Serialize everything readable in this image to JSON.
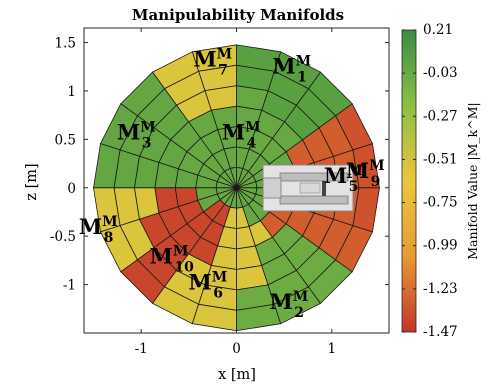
{
  "chart_data": {
    "type": "heatmap",
    "title": "Manipulability Manifolds",
    "xlabel": "x [m]",
    "ylabel": "z [m]",
    "xlim": [
      -1.6,
      1.6
    ],
    "ylim": [
      -1.5,
      1.65
    ],
    "xticks": [
      "-1",
      "0",
      "1"
    ],
    "yticks": [
      "1.5",
      "1",
      "0.5",
      "0",
      "-0.5",
      "-1"
    ],
    "colorbar": {
      "label": "Manifold Value |M_k^M|",
      "min": -1.47,
      "max": 0.21,
      "ticks": [
        "0.21",
        "-0.03",
        "-0.27",
        "-0.51",
        "-0.75",
        "-0.99",
        "-1.23",
        "-1.47"
      ],
      "colors": [
        "#3a8d3f",
        "#8cbf45",
        "#ecc63a",
        "#e89a34",
        "#c3352a"
      ]
    },
    "regions": [
      {
        "label": "M",
        "index": "1",
        "superscript": "M",
        "x": 0.58,
        "y": 1.18,
        "value": 0.05
      },
      {
        "label": "M",
        "index": "2",
        "superscript": "M",
        "x": 0.55,
        "y": -1.25,
        "value": -0.05
      },
      {
        "label": "M",
        "index": "3",
        "superscript": "M",
        "x": -1.05,
        "y": 0.5,
        "value": 0.0
      },
      {
        "label": "M",
        "index": "4",
        "superscript": "M",
        "x": 0.05,
        "y": 0.5,
        "value": -0.02
      },
      {
        "label": "M",
        "index": "5",
        "superscript": "M",
        "x": 1.12,
        "y": 0.05,
        "value": -1.3
      },
      {
        "label": "M",
        "index": "6",
        "superscript": "M",
        "x": -0.3,
        "y": -1.05,
        "value": -0.55
      },
      {
        "label": "M",
        "index": "7",
        "superscript": "M",
        "x": -0.25,
        "y": 1.25,
        "value": -0.55
      },
      {
        "label": "M",
        "index": "8",
        "superscript": "M",
        "x": -1.45,
        "y": -0.48,
        "value": -0.55
      },
      {
        "label": "M",
        "index": "9",
        "superscript": "M",
        "x": 1.35,
        "y": 0.1,
        "value": -1.35
      },
      {
        "label": "M",
        "index": "10",
        "superscript": "M",
        "x": -0.68,
        "y": -0.78,
        "value": -1.4
      }
    ]
  }
}
